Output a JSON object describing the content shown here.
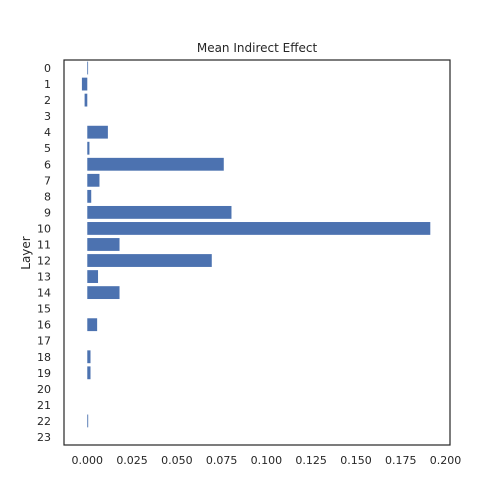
{
  "chart_data": {
    "type": "bar",
    "orientation": "horizontal",
    "title": "Mean Indirect Effect",
    "xlabel": "",
    "ylabel": "Layer",
    "categories": [
      "0",
      "1",
      "2",
      "3",
      "4",
      "5",
      "6",
      "7",
      "8",
      "9",
      "10",
      "11",
      "12",
      "13",
      "14",
      "15",
      "16",
      "17",
      "18",
      "19",
      "20",
      "21",
      "22",
      "23"
    ],
    "values": [
      0.0003,
      -0.003,
      -0.0015,
      0.0,
      0.0115,
      0.0012,
      0.0762,
      0.0068,
      0.0022,
      0.0805,
      0.1915,
      0.018,
      0.0695,
      0.006,
      0.018,
      0.0,
      0.0055,
      0.0,
      0.0018,
      0.0018,
      0.0,
      0.0,
      0.0005,
      0.0
    ],
    "xlim": [
      -0.013,
      0.2025
    ],
    "xticks": [
      0.0,
      0.025,
      0.05,
      0.075,
      0.1,
      0.125,
      0.15,
      0.175,
      0.2
    ],
    "xtick_labels": [
      "0.000",
      "0.025",
      "0.050",
      "0.075",
      "0.100",
      "0.125",
      "0.150",
      "0.175",
      "0.200"
    ],
    "grid": false,
    "legend": "none",
    "bar_color": "#4c72b0"
  }
}
